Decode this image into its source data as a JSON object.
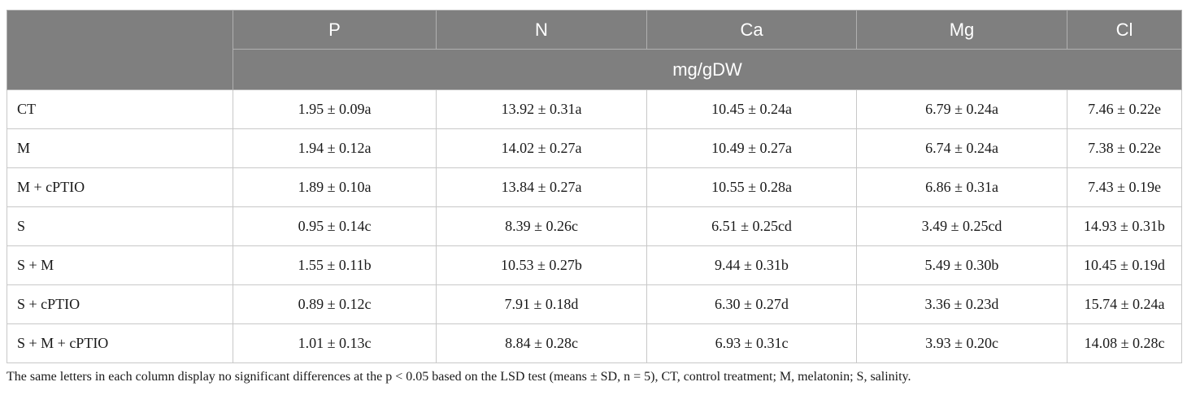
{
  "table": {
    "columns": [
      "P",
      "N",
      "Ca",
      "Mg",
      "Cl"
    ],
    "unit": "mg/gDW",
    "rows": [
      {
        "label": "CT",
        "values": [
          "1.95 ± 0.09a",
          "13.92 ± 0.31a",
          "10.45 ± 0.24a",
          "6.79 ± 0.24a",
          "7.46 ± 0.22e"
        ]
      },
      {
        "label": "M",
        "values": [
          "1.94 ± 0.12a",
          "14.02 ± 0.27a",
          "10.49 ± 0.27a",
          "6.74 ± 0.24a",
          "7.38 ± 0.22e"
        ]
      },
      {
        "label": "M + cPTIO",
        "values": [
          "1.89 ± 0.10a",
          "13.84 ± 0.27a",
          "10.55 ± 0.28a",
          "6.86 ± 0.31a",
          "7.43 ± 0.19e"
        ]
      },
      {
        "label": "S",
        "values": [
          "0.95 ± 0.14c",
          "8.39 ± 0.26c",
          "6.51 ± 0.25cd",
          "3.49 ± 0.25cd",
          "14.93 ± 0.31b"
        ]
      },
      {
        "label": "S + M",
        "values": [
          "1.55 ± 0.11b",
          "10.53 ± 0.27b",
          "9.44 ± 0.31b",
          "5.49 ± 0.30b",
          "10.45 ± 0.19d"
        ]
      },
      {
        "label": "S + cPTIO",
        "values": [
          "0.89 ± 0.12c",
          "7.91 ± 0.18d",
          "6.30 ± 0.27d",
          "3.36 ± 0.23d",
          "15.74 ± 0.24a"
        ]
      },
      {
        "label": "S + M + cPTIO",
        "values": [
          "1.01 ± 0.13c",
          "8.84 ± 0.28c",
          "6.93 ± 0.31c",
          "3.93 ± 0.20c",
          "14.08 ± 0.28c"
        ]
      }
    ]
  },
  "footnote": "The same letters in each column display no significant differences at the p < 0.05 based on the LSD test (means ± SD, n = 5), CT, control treatment; M, melatonin; S, salinity."
}
